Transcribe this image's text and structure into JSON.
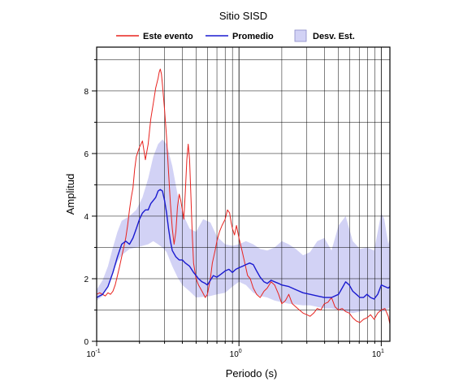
{
  "chart_data": {
    "type": "line",
    "title": "Sitio SISD",
    "xlabel": "Periodo (s)",
    "ylabel": "Amplitud",
    "xscale": "log",
    "xlim": [
      0.1,
      11.5
    ],
    "ylim": [
      0,
      9.4
    ],
    "grid": true,
    "legend_position": "top",
    "x_ticks": [
      {
        "value": 0.1,
        "base": "10",
        "exp": "-1"
      },
      {
        "value": 1,
        "base": "10",
        "exp": "0"
      },
      {
        "value": 10,
        "base": "10",
        "exp": "1"
      }
    ],
    "y_ticks": [
      0,
      2,
      4,
      6,
      8
    ],
    "legend": [
      {
        "label": "Este evento",
        "kind": "line",
        "color": "#e8231f"
      },
      {
        "label": "Promedio",
        "kind": "line",
        "color": "#1a1ad0"
      },
      {
        "label": "Desv. Est.",
        "kind": "band",
        "color": "#d2d2f5"
      }
    ],
    "band": {
      "name": "Desv. Est.",
      "color": "#d2d2f5",
      "x": [
        0.1,
        0.11,
        0.12,
        0.13,
        0.14,
        0.15,
        0.17,
        0.19,
        0.21,
        0.23,
        0.25,
        0.27,
        0.29,
        0.31,
        0.34,
        0.37,
        0.4,
        0.45,
        0.5,
        0.56,
        0.63,
        0.7,
        0.8,
        0.9,
        1.0,
        1.12,
        1.26,
        1.41,
        1.58,
        1.78,
        2.0,
        2.24,
        2.51,
        2.82,
        3.16,
        3.55,
        3.98,
        4.47,
        5.01,
        5.62,
        6.31,
        7.08,
        7.94,
        8.91,
        10.0,
        10.5,
        11.2,
        11.5
      ],
      "upper": [
        1.65,
        1.95,
        2.4,
        3.0,
        3.5,
        3.85,
        4.0,
        4.2,
        4.6,
        5.2,
        5.9,
        6.3,
        6.45,
        6.3,
        5.6,
        4.7,
        4.1,
        3.6,
        3.5,
        3.9,
        3.8,
        3.35,
        3.1,
        3.05,
        3.1,
        3.2,
        3.1,
        2.95,
        2.9,
        3.0,
        3.2,
        3.1,
        2.95,
        2.75,
        2.85,
        3.2,
        3.3,
        2.9,
        3.7,
        4.0,
        3.2,
        2.95,
        3.0,
        2.9,
        4.1,
        3.9,
        3.1,
        3.3
      ],
      "lower": [
        1.3,
        1.45,
        1.8,
        2.2,
        2.55,
        2.75,
        2.95,
        3.0,
        3.05,
        3.1,
        3.2,
        3.1,
        3.0,
        2.85,
        2.4,
        2.05,
        1.8,
        1.6,
        1.4,
        1.42,
        1.45,
        1.5,
        1.55,
        1.75,
        1.9,
        1.8,
        1.55,
        1.45,
        1.4,
        1.3,
        1.25,
        1.2,
        1.18,
        1.15,
        1.15,
        1.1,
        1.05,
        1.05,
        1.0,
        0.95,
        0.9,
        0.95,
        1.0,
        1.0,
        0.95,
        0.95,
        1.05,
        1.1
      ]
    },
    "series": [
      {
        "name": "Este evento",
        "color": "#e8231f",
        "x": [
          0.1,
          0.105,
          0.11,
          0.115,
          0.12,
          0.125,
          0.13,
          0.135,
          0.14,
          0.145,
          0.15,
          0.155,
          0.16,
          0.165,
          0.17,
          0.175,
          0.18,
          0.185,
          0.19,
          0.2,
          0.21,
          0.22,
          0.23,
          0.24,
          0.25,
          0.26,
          0.27,
          0.275,
          0.28,
          0.285,
          0.29,
          0.3,
          0.31,
          0.32,
          0.33,
          0.34,
          0.35,
          0.36,
          0.37,
          0.38,
          0.39,
          0.4,
          0.41,
          0.42,
          0.43,
          0.44,
          0.45,
          0.46,
          0.47,
          0.48,
          0.5,
          0.52,
          0.55,
          0.58,
          0.6,
          0.63,
          0.65,
          0.68,
          0.7,
          0.73,
          0.76,
          0.8,
          0.83,
          0.86,
          0.88,
          0.9,
          0.93,
          0.96,
          1.0,
          1.05,
          1.1,
          1.15,
          1.2,
          1.26,
          1.33,
          1.41,
          1.5,
          1.58,
          1.68,
          1.78,
          1.9,
          2.0,
          2.12,
          2.24,
          2.37,
          2.51,
          2.66,
          2.82,
          3.0,
          3.16,
          3.35,
          3.55,
          3.76,
          3.98,
          4.22,
          4.47,
          4.73,
          5.01,
          5.31,
          5.62,
          5.96,
          6.31,
          6.68,
          7.08,
          7.5,
          7.94,
          8.41,
          8.91,
          9.44,
          10.0,
          10.6,
          11.2,
          11.5
        ],
        "values": [
          1.5,
          1.55,
          1.5,
          1.45,
          1.55,
          1.5,
          1.6,
          1.8,
          2.1,
          2.4,
          2.7,
          3.0,
          3.3,
          3.7,
          4.2,
          4.6,
          4.9,
          5.5,
          5.9,
          6.2,
          6.4,
          5.8,
          6.3,
          7.1,
          7.6,
          8.1,
          8.4,
          8.6,
          8.7,
          8.55,
          8.2,
          7.4,
          6.5,
          5.4,
          4.4,
          3.6,
          3.1,
          3.5,
          4.3,
          4.7,
          4.5,
          4.2,
          3.9,
          4.8,
          5.8,
          6.3,
          5.8,
          4.6,
          3.4,
          2.5,
          2.0,
          1.8,
          1.6,
          1.4,
          1.5,
          2.0,
          2.5,
          2.9,
          3.2,
          3.5,
          3.7,
          3.9,
          4.2,
          4.1,
          3.8,
          3.6,
          3.4,
          3.7,
          3.3,
          2.9,
          2.5,
          2.1,
          2.0,
          1.7,
          1.5,
          1.4,
          1.6,
          1.7,
          1.9,
          1.8,
          1.5,
          1.2,
          1.3,
          1.5,
          1.2,
          1.1,
          1.0,
          0.9,
          0.85,
          0.8,
          0.9,
          1.05,
          1.0,
          1.2,
          1.25,
          1.4,
          1.1,
          1.0,
          1.05,
          0.95,
          0.9,
          0.75,
          0.65,
          0.6,
          0.7,
          0.75,
          0.85,
          0.7,
          0.9,
          1.0,
          1.05,
          0.8,
          0.55
        ]
      },
      {
        "name": "Promedio",
        "color": "#1a1ad0",
        "x": [
          0.1,
          0.11,
          0.12,
          0.13,
          0.14,
          0.15,
          0.16,
          0.17,
          0.18,
          0.19,
          0.2,
          0.21,
          0.22,
          0.23,
          0.24,
          0.25,
          0.26,
          0.27,
          0.28,
          0.29,
          0.3,
          0.31,
          0.32,
          0.33,
          0.34,
          0.36,
          0.38,
          0.4,
          0.42,
          0.45,
          0.48,
          0.5,
          0.52,
          0.55,
          0.58,
          0.6,
          0.63,
          0.66,
          0.7,
          0.75,
          0.8,
          0.85,
          0.9,
          0.95,
          1.0,
          1.06,
          1.12,
          1.19,
          1.26,
          1.33,
          1.41,
          1.5,
          1.58,
          1.68,
          1.78,
          1.9,
          2.0,
          2.24,
          2.51,
          2.82,
          3.16,
          3.55,
          3.98,
          4.47,
          5.01,
          5.31,
          5.62,
          5.96,
          6.31,
          6.68,
          7.08,
          7.5,
          7.94,
          8.41,
          8.91,
          9.44,
          10.0,
          10.6,
          11.2,
          11.5
        ],
        "values": [
          1.4,
          1.5,
          1.75,
          2.2,
          2.7,
          3.1,
          3.2,
          3.1,
          3.3,
          3.6,
          3.9,
          4.1,
          4.2,
          4.2,
          4.4,
          4.5,
          4.6,
          4.8,
          4.85,
          4.8,
          4.5,
          4.1,
          3.6,
          3.2,
          2.9,
          2.7,
          2.6,
          2.6,
          2.5,
          2.4,
          2.2,
          2.1,
          2.0,
          1.9,
          1.85,
          1.8,
          1.95,
          2.1,
          2.05,
          2.15,
          2.25,
          2.3,
          2.2,
          2.3,
          2.35,
          2.4,
          2.45,
          2.5,
          2.45,
          2.25,
          2.05,
          1.9,
          1.85,
          1.95,
          1.9,
          1.85,
          1.8,
          1.75,
          1.65,
          1.55,
          1.5,
          1.45,
          1.4,
          1.4,
          1.5,
          1.7,
          1.9,
          1.8,
          1.6,
          1.5,
          1.4,
          1.4,
          1.5,
          1.4,
          1.35,
          1.5,
          1.8,
          1.75,
          1.7,
          1.75
        ]
      }
    ]
  }
}
